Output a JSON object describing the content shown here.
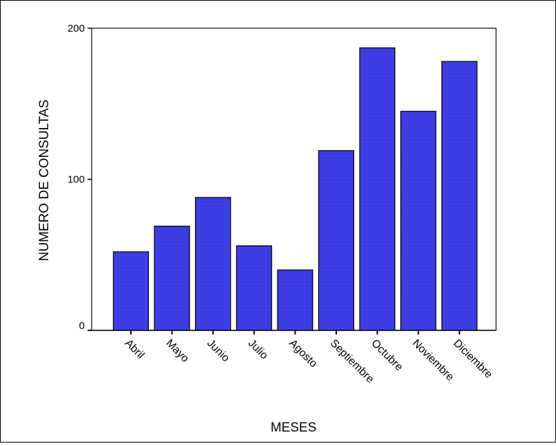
{
  "chart_data": {
    "type": "bar",
    "title": "",
    "xlabel": "MESES",
    "ylabel": "NUMERO DE CONSULTAS",
    "ylim": [
      0,
      200
    ],
    "yticks": [
      0,
      100,
      200
    ],
    "categories": [
      "Abril",
      "Mayo",
      "Junio",
      "Julio",
      "Agosto",
      "Septiembre",
      "Octubre",
      "Noviembre",
      "Diciembre"
    ],
    "values": [
      52,
      69,
      88,
      56,
      40,
      119,
      187,
      145,
      178
    ],
    "bar_color": "#3a3ae0",
    "grid": false,
    "legend": "none"
  }
}
